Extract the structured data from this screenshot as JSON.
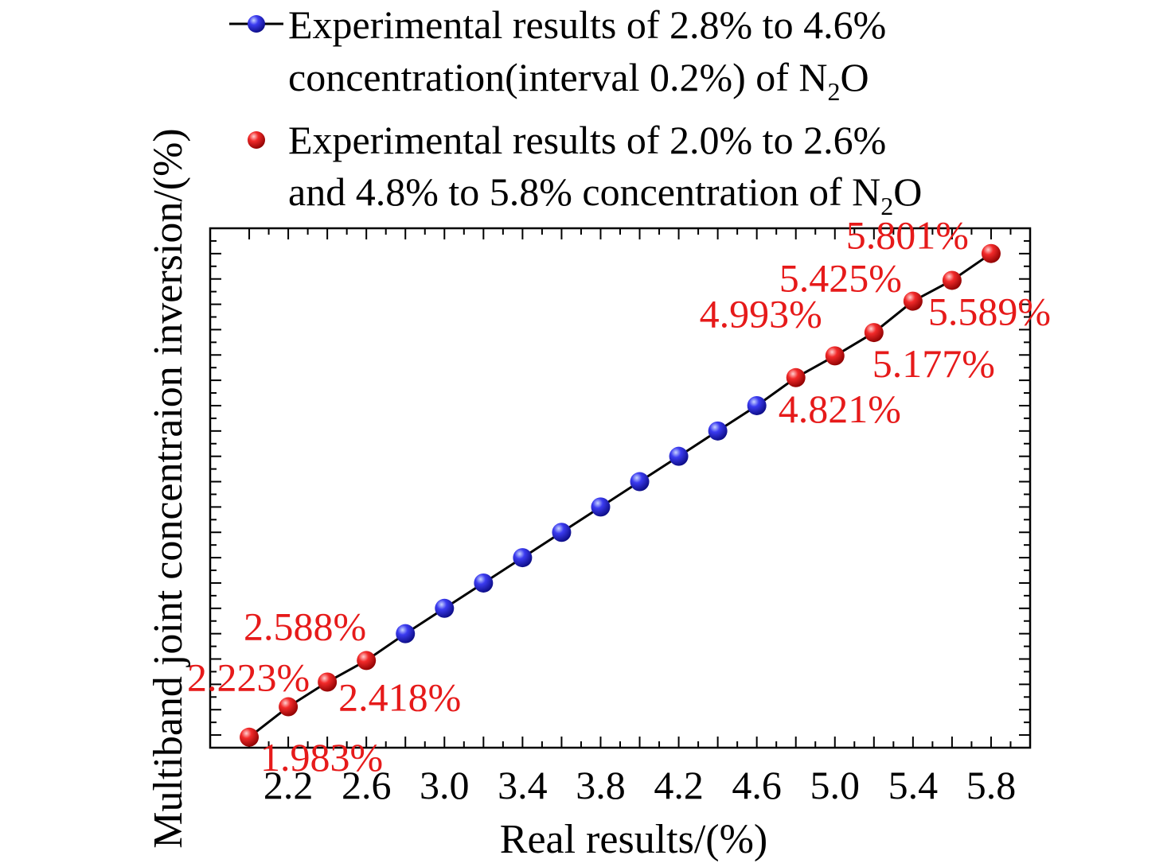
{
  "chart_data": {
    "type": "scatter",
    "xlabel": "Real results/(%)",
    "ylabel": "Multiband joint concentraion inversion/(%)",
    "xlim": [
      1.8,
      6.0
    ],
    "ylim": [
      1.9,
      6.0
    ],
    "x_ticks": [
      "2.2",
      "2.6",
      "3.0",
      "3.4",
      "3.8",
      "4.2",
      "4.6",
      "5.0",
      "5.4",
      "5.8"
    ],
    "grid": false,
    "legend_position": "top",
    "series": [
      {
        "name_line1": "Experimental results of 2.8% to 4.6%",
        "name_line2": "concentration(interval 0.2%) of N",
        "name_sub": "2",
        "name_tail": "O",
        "color": "#1a1ae6",
        "line": true,
        "x": [
          2.8,
          3.0,
          3.2,
          3.4,
          3.6,
          3.8,
          4.0,
          4.2,
          4.4,
          4.6
        ],
        "y": [
          2.8,
          3.0,
          3.2,
          3.4,
          3.6,
          3.8,
          4.0,
          4.2,
          4.4,
          4.6
        ]
      },
      {
        "name_line1": "Experimental results of 2.0% to 2.6%",
        "name_line2": "and 4.8% to 5.8% concentration of N",
        "name_sub": "2",
        "name_tail": "O",
        "color": "#e61a1a",
        "line": false,
        "x": [
          2.0,
          2.2,
          2.4,
          2.6,
          4.8,
          5.0,
          5.2,
          5.4,
          5.6,
          5.8
        ],
        "y": [
          1.983,
          2.223,
          2.418,
          2.588,
          4.821,
          4.993,
          5.177,
          5.425,
          5.589,
          5.801
        ],
        "labels": [
          "1.983%",
          "2.223%",
          "2.418%",
          "2.588%",
          "4.821%",
          "4.993%",
          "5.177%",
          "5.425%",
          "5.589%",
          "5.801%"
        ]
      }
    ],
    "label_color": "#e61a1a",
    "line_color": "#000000"
  }
}
